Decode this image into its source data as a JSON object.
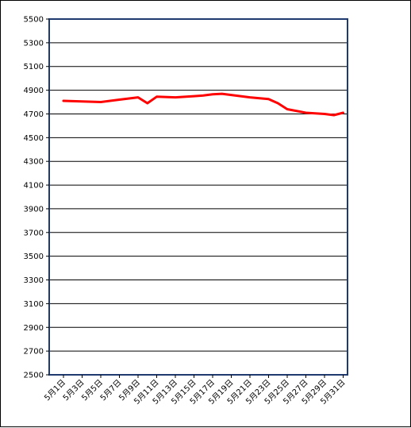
{
  "chart_data": {
    "type": "line",
    "title": "",
    "xlabel": "",
    "ylabel": "",
    "ylim": [
      2500,
      5500
    ],
    "yticks": [
      2500,
      2700,
      2900,
      3100,
      3300,
      3500,
      3700,
      3900,
      4100,
      4300,
      4500,
      4700,
      4900,
      5100,
      5300,
      5500
    ],
    "xtick_labels": [
      "5月1日",
      "5月3日",
      "5月5日",
      "5月7日",
      "5月9日",
      "5月11日",
      "5月13日",
      "5月15日",
      "5月17日",
      "5月19日",
      "5月21日",
      "5月23日",
      "5月25日",
      "5月27日",
      "5月29日",
      "5月31日"
    ],
    "grid": true,
    "line_color": "#ff0000",
    "days": [
      1,
      3,
      5,
      7,
      9,
      10,
      11,
      13,
      15,
      16,
      17,
      18,
      19,
      21,
      23,
      24,
      25,
      27,
      29,
      30,
      31
    ],
    "values": [
      4810,
      4805,
      4800,
      4820,
      4840,
      4790,
      4845,
      4840,
      4850,
      4855,
      4865,
      4870,
      4860,
      4840,
      4825,
      4790,
      4740,
      4710,
      4700,
      4690,
      4710
    ]
  }
}
